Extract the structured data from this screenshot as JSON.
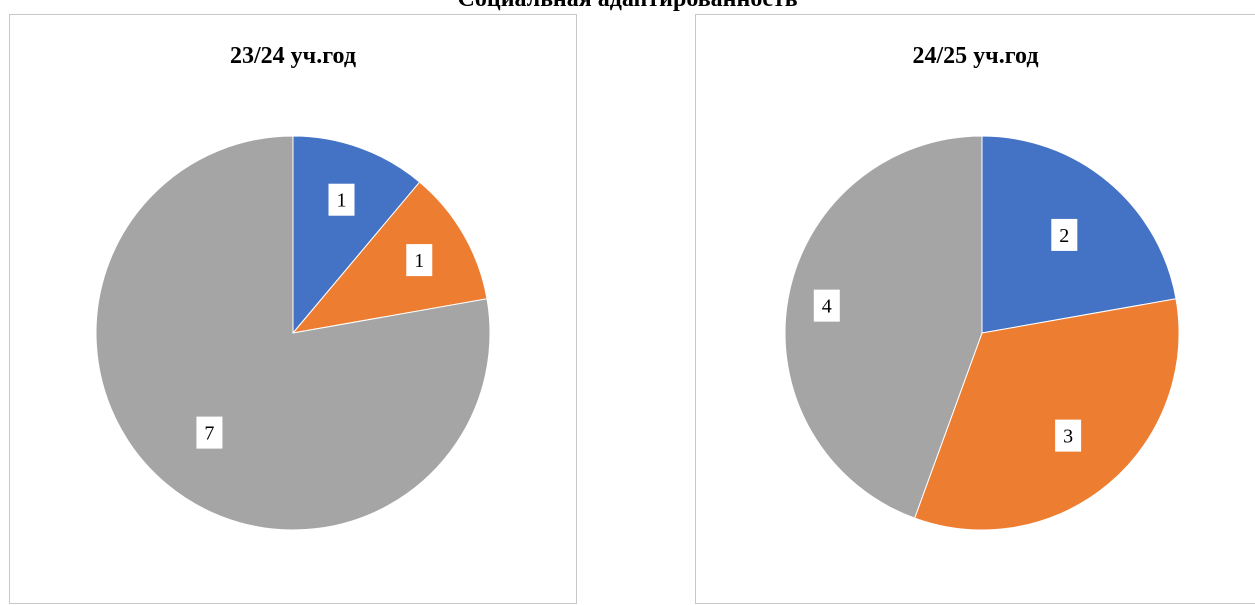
{
  "page_title": "Социальная адаптированность",
  "chart_data": [
    {
      "type": "pie",
      "title": "23/24 уч.год",
      "categories": [
        "",
        "",
        ""
      ],
      "values": [
        1,
        1,
        7
      ],
      "colors": [
        "#4472C4",
        "#ED7D31",
        "#A5A5A5"
      ],
      "data_labels": [
        "1",
        "1",
        "7"
      ]
    },
    {
      "type": "pie",
      "title": "24/25 уч.год",
      "categories": [
        "",
        "",
        ""
      ],
      "values": [
        2,
        3,
        4
      ],
      "colors": [
        "#4472C4",
        "#ED7D31",
        "#A5A5A5"
      ],
      "data_labels": [
        "2",
        "3",
        "4"
      ]
    }
  ]
}
